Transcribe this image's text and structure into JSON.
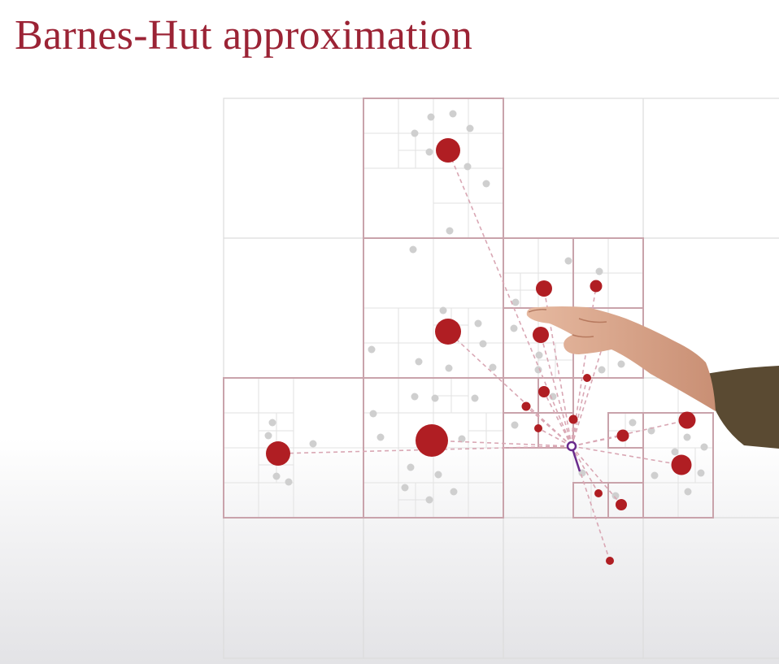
{
  "title": "Barnes-Hut approximation",
  "colors": {
    "title": "#9b2335",
    "node_fill": "#b01e23",
    "node_stroke": "#c9a3ab",
    "grid_line": "#dcdcdc",
    "gray_point": "#cfcfcf",
    "line": "#d9a7b4",
    "target": "#6a2b8c",
    "skin": "#d9a88e",
    "sleeve": "#5a4a32"
  },
  "diagram": {
    "grid_levels": 4,
    "target_point": "purple-circle",
    "centers_of_mass": 16,
    "background_points": "gray-dots",
    "force_lines": "dashed"
  }
}
